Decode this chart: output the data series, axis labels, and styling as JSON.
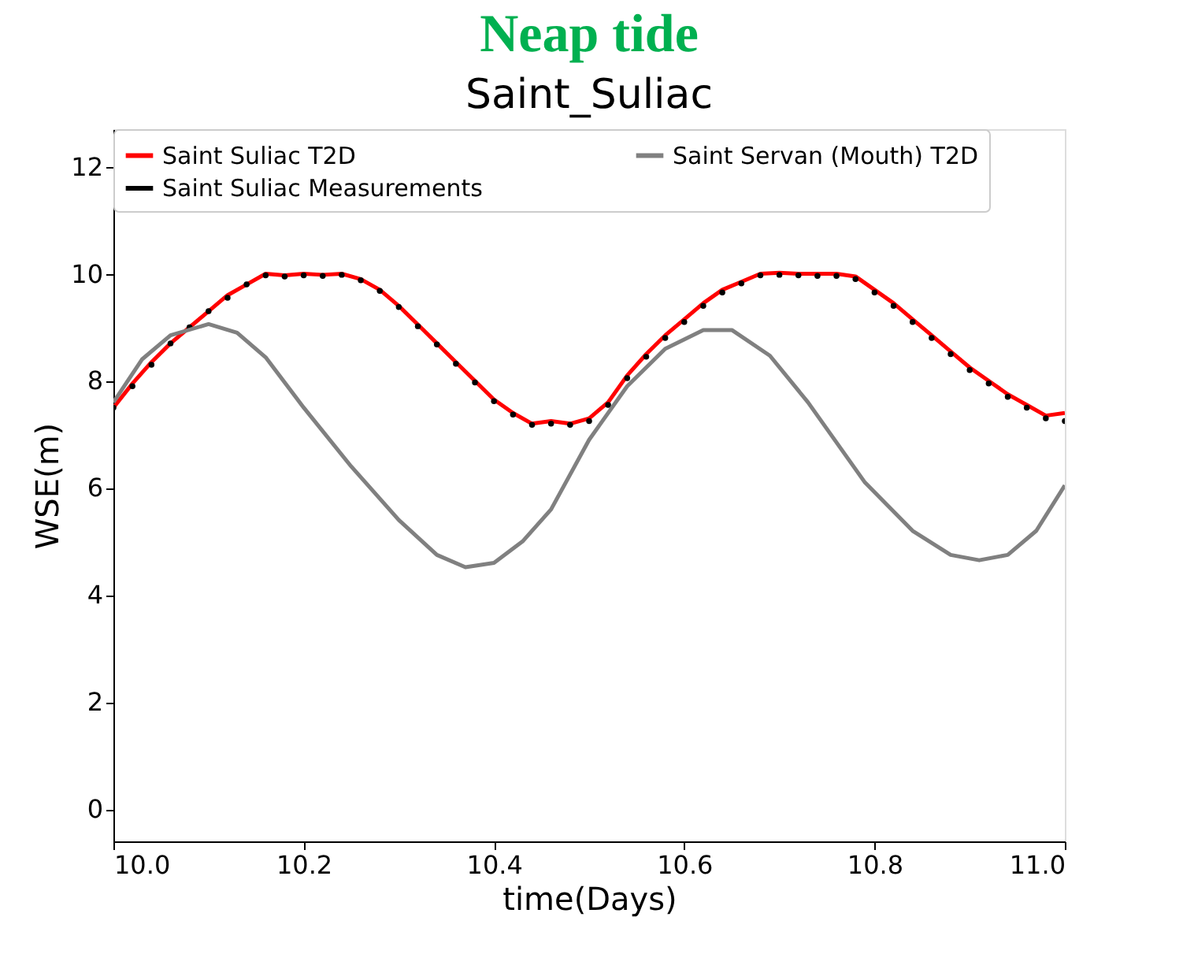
{
  "chart_data": {
    "type": "line",
    "title": "Neap tide",
    "subtitle": "Saint_Suliac",
    "xlabel": "time(Days)",
    "ylabel": "WSE(m)",
    "xlim": [
      10,
      11
    ],
    "xticks": [
      {
        "value": 10,
        "label": "10.0"
      },
      {
        "value": 10.2,
        "label": "10.2"
      },
      {
        "value": 10.4,
        "label": "10.4"
      },
      {
        "value": 10.6,
        "label": "10.6"
      },
      {
        "value": 10.8,
        "label": "10.8"
      },
      {
        "value": 11,
        "label": "11.0"
      }
    ],
    "ylim": [
      -0.6,
      12.7
    ],
    "yticks": [
      0,
      2,
      4,
      6,
      8,
      10,
      12
    ],
    "grid": false,
    "legend": "top left",
    "series": [
      {
        "name": "Saint Suliac T2D",
        "color": "#ff0000",
        "line_style": "solid",
        "x": [
          10.0,
          10.02,
          10.04,
          10.06,
          10.08,
          10.1,
          10.12,
          10.14,
          10.16,
          10.18,
          10.2,
          10.22,
          10.24,
          10.26,
          10.28,
          10.3,
          10.32,
          10.34,
          10.36,
          10.38,
          10.4,
          10.42,
          10.44,
          10.46,
          10.48,
          10.5,
          10.52,
          10.54,
          10.56,
          10.58,
          10.6,
          10.62,
          10.64,
          10.66,
          10.68,
          10.7,
          10.72,
          10.74,
          10.76,
          10.78,
          10.8,
          10.82,
          10.84,
          10.86,
          10.88,
          10.9,
          10.92,
          10.94,
          10.96,
          10.98,
          11.0
        ],
        "values": [
          7.5,
          7.95,
          8.35,
          8.7,
          9.0,
          9.3,
          9.6,
          9.8,
          10.0,
          9.97,
          10.0,
          9.98,
          10.0,
          9.9,
          9.7,
          9.4,
          9.05,
          8.7,
          8.35,
          8.0,
          7.65,
          7.4,
          7.2,
          7.25,
          7.2,
          7.3,
          7.6,
          8.1,
          8.5,
          8.85,
          9.15,
          9.45,
          9.7,
          9.85,
          10.0,
          10.02,
          10.0,
          10.0,
          10.0,
          9.95,
          9.7,
          9.45,
          9.15,
          8.85,
          8.55,
          8.25,
          8.0,
          7.75,
          7.55,
          7.35,
          7.4
        ]
      },
      {
        "name": "Saint Suliac Measurements",
        "color": "#000000",
        "type": "scatter",
        "marker": "circle",
        "x": [
          10.0,
          10.02,
          10.04,
          10.06,
          10.08,
          10.1,
          10.12,
          10.14,
          10.16,
          10.18,
          10.2,
          10.22,
          10.24,
          10.26,
          10.28,
          10.3,
          10.32,
          10.34,
          10.36,
          10.38,
          10.4,
          10.42,
          10.44,
          10.46,
          10.48,
          10.5,
          10.52,
          10.54,
          10.56,
          10.58,
          10.6,
          10.62,
          10.64,
          10.66,
          10.68,
          10.7,
          10.72,
          10.74,
          10.76,
          10.78,
          10.8,
          10.82,
          10.84,
          10.86,
          10.88,
          10.9,
          10.92,
          10.94,
          10.96,
          10.98,
          11.0
        ],
        "values": [
          7.5,
          7.9,
          8.3,
          8.7,
          9.0,
          9.3,
          9.55,
          9.8,
          9.97,
          9.95,
          9.97,
          9.96,
          9.98,
          9.88,
          9.68,
          9.38,
          9.02,
          8.68,
          8.32,
          7.97,
          7.62,
          7.37,
          7.18,
          7.2,
          7.18,
          7.25,
          7.55,
          8.05,
          8.45,
          8.8,
          9.1,
          9.4,
          9.65,
          9.82,
          9.97,
          9.98,
          9.97,
          9.96,
          9.96,
          9.9,
          9.65,
          9.4,
          9.1,
          8.8,
          8.5,
          8.2,
          7.95,
          7.7,
          7.5,
          7.3,
          7.25
        ]
      },
      {
        "name": "Saint Servan (Mouth) T2D",
        "color": "#808080",
        "line_style": "solid",
        "x": [
          10.0,
          10.03,
          10.06,
          10.1,
          10.13,
          10.16,
          10.2,
          10.25,
          10.3,
          10.34,
          10.37,
          10.4,
          10.43,
          10.46,
          10.5,
          10.54,
          10.58,
          10.62,
          10.65,
          10.69,
          10.73,
          10.79,
          10.84,
          10.88,
          10.91,
          10.94,
          10.97,
          11.0
        ],
        "values": [
          7.6,
          8.4,
          8.85,
          9.06,
          8.9,
          8.44,
          7.5,
          6.4,
          5.4,
          4.75,
          4.52,
          4.6,
          5.0,
          5.6,
          6.9,
          7.9,
          8.6,
          8.95,
          8.95,
          8.47,
          7.6,
          6.1,
          5.2,
          4.75,
          4.65,
          4.75,
          5.2,
          6.05
        ]
      }
    ]
  }
}
